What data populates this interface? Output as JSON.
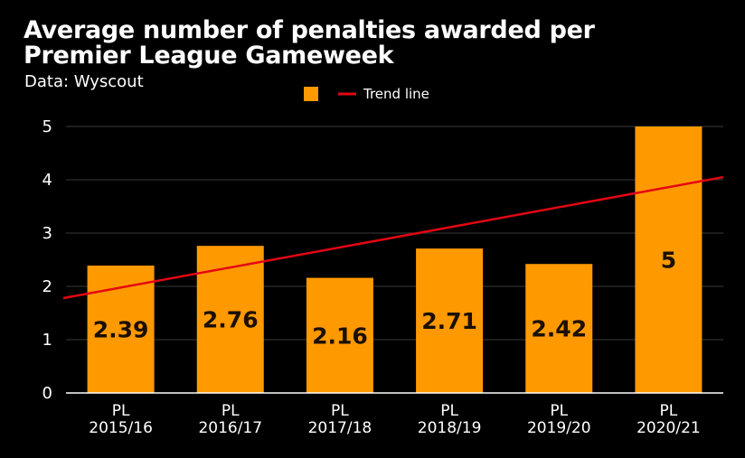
{
  "chart_data": {
    "type": "bar",
    "title_lines": [
      "Average number of penalties awarded per",
      "Premier League Gameweek"
    ],
    "subtitle": "Data: Wyscout",
    "categories": [
      [
        "PL",
        "2015/16"
      ],
      [
        "PL",
        "2016/17"
      ],
      [
        "PL",
        "2017/18"
      ],
      [
        "PL",
        "2018/19"
      ],
      [
        "PL",
        "2019/20"
      ],
      [
        "PL",
        "2020/21"
      ]
    ],
    "values": [
      2.39,
      2.76,
      2.16,
      2.71,
      2.42,
      5
    ],
    "data_labels": [
      "2.39",
      "2.76",
      "2.16",
      "2.71",
      "2.42",
      "5"
    ],
    "yticks": [
      "0",
      "1",
      "2",
      "3",
      "4",
      "5"
    ],
    "ylim": [
      0,
      5
    ],
    "trend_line": {
      "start": 1.78,
      "end": 4.05
    },
    "legend": [
      {
        "label": "",
        "type": "bar",
        "color": "#ff9900"
      },
      {
        "label": "Trend line",
        "type": "line",
        "color": "#e30613"
      }
    ],
    "bar_color": "#ff9900",
    "trend_color": "#e30613",
    "grid": true,
    "legend_position": "top-center"
  }
}
